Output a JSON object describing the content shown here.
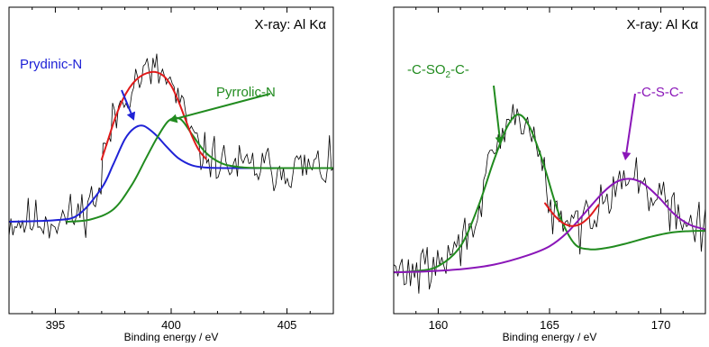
{
  "chart_data": [
    {
      "type": "line",
      "title": "",
      "inset_label": "X-ray: Al Kα",
      "xlabel": "Binding energy  / eV",
      "ylabel": "",
      "xlim": [
        393,
        407
      ],
      "ylim": [
        0,
        100
      ],
      "xticks": [
        395,
        400,
        405
      ],
      "xtick_labels": [
        "395",
        "400",
        "405"
      ],
      "show_y_ticks": false,
      "grid": false,
      "annotations": [
        {
          "text": "Prydinic-N",
          "color": "#1f22d6",
          "points_to": [
            398.4,
            63
          ]
        },
        {
          "text": "Pyrrolic-N",
          "color": "#218b1f",
          "points_to": [
            399.9,
            63
          ]
        }
      ],
      "series": [
        {
          "name": "",
          "color": "#000000",
          "role": "raw",
          "x_range": [
            393,
            407
          ],
          "n": 170
        },
        {
          "name": "",
          "color": "#e01b1b",
          "role": "envelope",
          "x": [
            397.0,
            397.3,
            397.6,
            397.9,
            398.2,
            398.5,
            398.8,
            399.1,
            399.4,
            399.7,
            400.0,
            400.3,
            400.6,
            400.9,
            401.2,
            401.5
          ],
          "y": [
            50.3,
            57.3,
            64.2,
            69.7,
            73.7,
            76.4,
            78.0,
            78.8,
            78.7,
            77.4,
            74.4,
            69.6,
            63.7,
            57.9,
            53.3,
            50.5
          ]
        },
        {
          "name": "Prydinic-N",
          "color": "#1f22d6",
          "role": "fit",
          "peak": {
            "center": 398.4,
            "fwhm": 1.9,
            "height": 25.5,
            "baseline_left": 30.0,
            "baseline_right": 47.5
          },
          "x": [
            393.0,
            395.0,
            396.0,
            397.0,
            397.5,
            398.0,
            398.4,
            398.8,
            399.3,
            399.8,
            400.3,
            400.9,
            401.5,
            402.5,
            404.0,
            407.0
          ],
          "y": [
            30.0,
            30.5,
            32.3,
            41.0,
            48.7,
            56.9,
            60.5,
            61.3,
            58.6,
            54.5,
            50.8,
            48.4,
            47.7,
            47.5,
            47.5,
            47.5
          ]
        },
        {
          "name": "Pyrrolic-N",
          "color": "#218b1f",
          "role": "fit",
          "peak": {
            "center": 399.9,
            "fwhm": 1.7,
            "height": 33.0,
            "baseline_left": 30.0,
            "baseline_right": 47.5
          },
          "x": [
            395.5,
            396.5,
            397.5,
            398.3,
            398.9,
            399.4,
            399.9,
            400.4,
            400.9,
            401.5,
            402.2,
            403.0,
            404.0,
            405.0,
            406.0,
            407.0
          ],
          "y": [
            30.0,
            30.7,
            34.0,
            42.0,
            50.5,
            57.5,
            63.0,
            63.5,
            58.5,
            52.5,
            49.0,
            47.8,
            47.5,
            47.5,
            47.5,
            47.5
          ]
        }
      ]
    },
    {
      "type": "line",
      "title": "",
      "inset_label": "X-ray: Al Kα",
      "xlabel": "Binding energy  / eV",
      "ylabel": "",
      "xlim": [
        158,
        172
      ],
      "ylim": [
        0,
        100
      ],
      "xticks": [
        160,
        165,
        170
      ],
      "xtick_labels": [
        "160",
        "165",
        "170"
      ],
      "show_y_ticks": false,
      "grid": false,
      "annotations": [
        {
          "text": "-C-SO",
          "sub": "2",
          "text_after": "-C-",
          "color": "#218b1f",
          "points_to": [
            162.8,
            55
          ]
        },
        {
          "text": "-C-S-C-",
          "color": "#8a16b8",
          "points_to": [
            168.4,
            50
          ]
        }
      ],
      "series": [
        {
          "name": "",
          "color": "#000000",
          "role": "raw",
          "x_range": [
            158,
            172
          ],
          "n": 150
        },
        {
          "name": "",
          "color": "#e01b1b",
          "role": "envelope",
          "x": [
            164.8,
            165.2,
            165.6,
            166.0,
            166.4,
            166.8,
            167.2
          ],
          "y": [
            36.0,
            32.2,
            29.6,
            28.6,
            29.3,
            31.7,
            35.5
          ]
        },
        {
          "name": "-C-SO2-C-",
          "color": "#218b1f",
          "role": "fit",
          "x": [
            158.0,
            159.0,
            160.0,
            161.0,
            161.8,
            162.5,
            163.1,
            163.6,
            164.1,
            164.7,
            165.4,
            166.1,
            166.8,
            167.6,
            168.5,
            169.5,
            170.5,
            171.5,
            172.0
          ],
          "y": [
            13.5,
            13.9,
            15.5,
            22.0,
            35.0,
            50.0,
            61.0,
            65.0,
            61.0,
            49.5,
            33.0,
            23.0,
            21.0,
            21.5,
            23.0,
            25.0,
            26.5,
            27.0,
            27.0
          ]
        },
        {
          "name": "-C-S-C-",
          "color": "#8a16b8",
          "role": "fit",
          "x": [
            158.0,
            159.5,
            161.0,
            162.5,
            164.0,
            165.0,
            165.8,
            166.6,
            167.4,
            168.0,
            168.6,
            169.2,
            169.9,
            170.6,
            171.3,
            172.0
          ],
          "y": [
            13.5,
            13.8,
            14.5,
            16.0,
            19.0,
            22.0,
            26.5,
            33.0,
            39.5,
            43.0,
            44.0,
            42.5,
            38.0,
            32.5,
            29.0,
            27.5
          ]
        }
      ]
    }
  ]
}
